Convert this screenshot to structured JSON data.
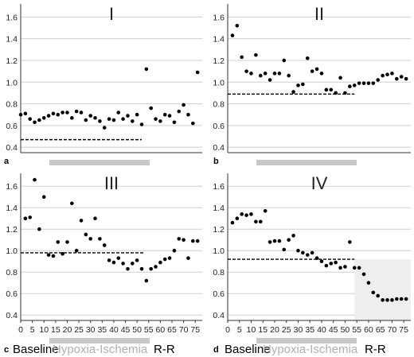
{
  "chart_data": [
    {
      "type": "scatter",
      "title": "I",
      "panel_label": "a",
      "ylim": [
        0.35,
        1.72
      ],
      "yticks": [
        0.4,
        0.6,
        0.8,
        1.0,
        1.2,
        1.4,
        1.6
      ],
      "xlim": [
        0,
        78
      ],
      "xticks": [],
      "baseline_value": 0.47,
      "baseline_x": [
        0,
        52
      ],
      "hypoxia_bar": [
        12,
        52
      ],
      "x": [
        0,
        2,
        4,
        6,
        8,
        10,
        12,
        14,
        16,
        18,
        20,
        22,
        24,
        26,
        28,
        30,
        32,
        34,
        36,
        38,
        40,
        42,
        44,
        46,
        48,
        50,
        52,
        54,
        56,
        58,
        60,
        62,
        64,
        66,
        68,
        70,
        72,
        74,
        76
      ],
      "y": [
        0.7,
        0.71,
        0.66,
        0.63,
        0.65,
        0.67,
        0.69,
        0.71,
        0.7,
        0.72,
        0.72,
        0.67,
        0.73,
        0.72,
        0.65,
        0.69,
        0.67,
        0.64,
        0.58,
        0.66,
        0.65,
        0.72,
        0.66,
        0.69,
        0.64,
        0.7,
        0.61,
        1.12,
        0.76,
        0.66,
        0.64,
        0.7,
        0.69,
        0.63,
        0.73,
        0.79,
        0.7,
        0.62,
        1.09
      ],
      "xlabel": "",
      "ylabel": ""
    },
    {
      "type": "scatter",
      "title": "II",
      "panel_label": "b",
      "ylim": [
        0.35,
        1.72
      ],
      "yticks": [
        0.4,
        0.6,
        0.8,
        1.0,
        1.2,
        1.4,
        1.6
      ],
      "xlim": [
        0,
        78
      ],
      "xticks": [],
      "baseline_value": 0.89,
      "baseline_x": [
        0,
        54
      ],
      "hypoxia_bar": [
        12,
        54
      ],
      "x": [
        2,
        4,
        6,
        8,
        10,
        12,
        14,
        16,
        18,
        20,
        22,
        24,
        26,
        28,
        30,
        32,
        34,
        36,
        38,
        40,
        42,
        44,
        46,
        48,
        50,
        52,
        54,
        56,
        58,
        60,
        62,
        64,
        66,
        68,
        70,
        72,
        74,
        76
      ],
      "y": [
        1.43,
        1.52,
        1.23,
        1.1,
        1.08,
        1.25,
        1.06,
        1.08,
        1.02,
        1.08,
        1.08,
        1.2,
        1.06,
        0.91,
        0.97,
        0.98,
        1.22,
        1.1,
        1.12,
        1.08,
        0.93,
        0.93,
        0.9,
        1.04,
        0.9,
        0.96,
        0.97,
        0.99,
        0.99,
        0.99,
        0.99,
        1.02,
        1.06,
        1.07,
        1.08,
        1.03,
        1.05,
        1.03
      ],
      "xlabel": "",
      "ylabel": ""
    },
    {
      "type": "scatter",
      "title": "III",
      "panel_label": "c",
      "ylim": [
        0.35,
        1.72
      ],
      "yticks": [
        0.4,
        0.6,
        0.8,
        1.0,
        1.2,
        1.4,
        1.6
      ],
      "xlim": [
        0,
        78
      ],
      "xticks": [
        0,
        5,
        10,
        15,
        20,
        25,
        30,
        35,
        40,
        45,
        50,
        55,
        60,
        65,
        70,
        75
      ],
      "baseline_value": 0.98,
      "baseline_x": [
        0,
        53
      ],
      "hypoxia_bar": [
        12,
        52
      ],
      "x": [
        2,
        4,
        6,
        8,
        10,
        12,
        14,
        16,
        18,
        20,
        22,
        24,
        26,
        28,
        30,
        32,
        34,
        36,
        38,
        40,
        42,
        44,
        46,
        48,
        50,
        52,
        54,
        56,
        58,
        60,
        62,
        64,
        66,
        68,
        70,
        72,
        74,
        76
      ],
      "y": [
        1.3,
        1.31,
        1.66,
        1.2,
        1.5,
        0.96,
        0.95,
        1.08,
        0.97,
        1.08,
        1.44,
        1.0,
        1.28,
        1.15,
        1.11,
        1.3,
        1.11,
        1.05,
        0.91,
        0.89,
        0.93,
        0.88,
        0.83,
        0.88,
        0.91,
        0.83,
        0.72,
        0.83,
        0.85,
        0.89,
        0.92,
        0.93,
        1.0,
        1.11,
        1.1,
        0.93,
        1.09,
        1.09
      ],
      "xlabel": "",
      "ylabel": ""
    },
    {
      "type": "scatter",
      "title": "IV",
      "panel_label": "d",
      "ylim": [
        0.35,
        1.72
      ],
      "yticks": [
        0.4,
        0.6,
        0.8,
        1.0,
        1.2,
        1.4,
        1.6
      ],
      "xlim": [
        0,
        78
      ],
      "xticks": [
        0,
        5,
        10,
        15,
        20,
        25,
        30,
        35,
        40,
        45,
        50,
        55,
        60,
        65,
        70,
        75
      ],
      "baseline_value": 0.92,
      "baseline_x": [
        0,
        54
      ],
      "hypoxia_bar": [
        12,
        54
      ],
      "shaded_region": {
        "x": [
          54,
          78
        ],
        "y_top": 0.92
      },
      "x": [
        2,
        4,
        6,
        8,
        10,
        12,
        14,
        16,
        18,
        20,
        22,
        24,
        26,
        28,
        30,
        32,
        34,
        36,
        38,
        40,
        42,
        44,
        46,
        48,
        50,
        52,
        54,
        56,
        58,
        60,
        62,
        64,
        66,
        68,
        70,
        72,
        74,
        76
      ],
      "y": [
        1.26,
        1.3,
        1.34,
        1.33,
        1.34,
        1.27,
        1.27,
        1.37,
        1.08,
        1.09,
        1.09,
        1.01,
        1.1,
        1.14,
        1.0,
        0.98,
        0.96,
        0.98,
        0.93,
        0.9,
        0.86,
        0.88,
        0.89,
        0.84,
        0.85,
        1.08,
        0.84,
        0.84,
        0.78,
        0.7,
        0.61,
        0.58,
        0.54,
        0.54,
        0.54,
        0.55,
        0.55,
        0.55
      ],
      "xlabel": "",
      "ylabel": ""
    }
  ],
  "labels": {
    "baseline": "Baseline",
    "hypoxia": "Hypoxia-Ischemia",
    "rr": "R-R"
  },
  "colors": {
    "dot": "#000000",
    "grid": "#cfcfcf",
    "hypoxia_bar": "#c8c8c8",
    "shade": "#eeeeee",
    "hypoxia_text": "#b0b0b0"
  }
}
